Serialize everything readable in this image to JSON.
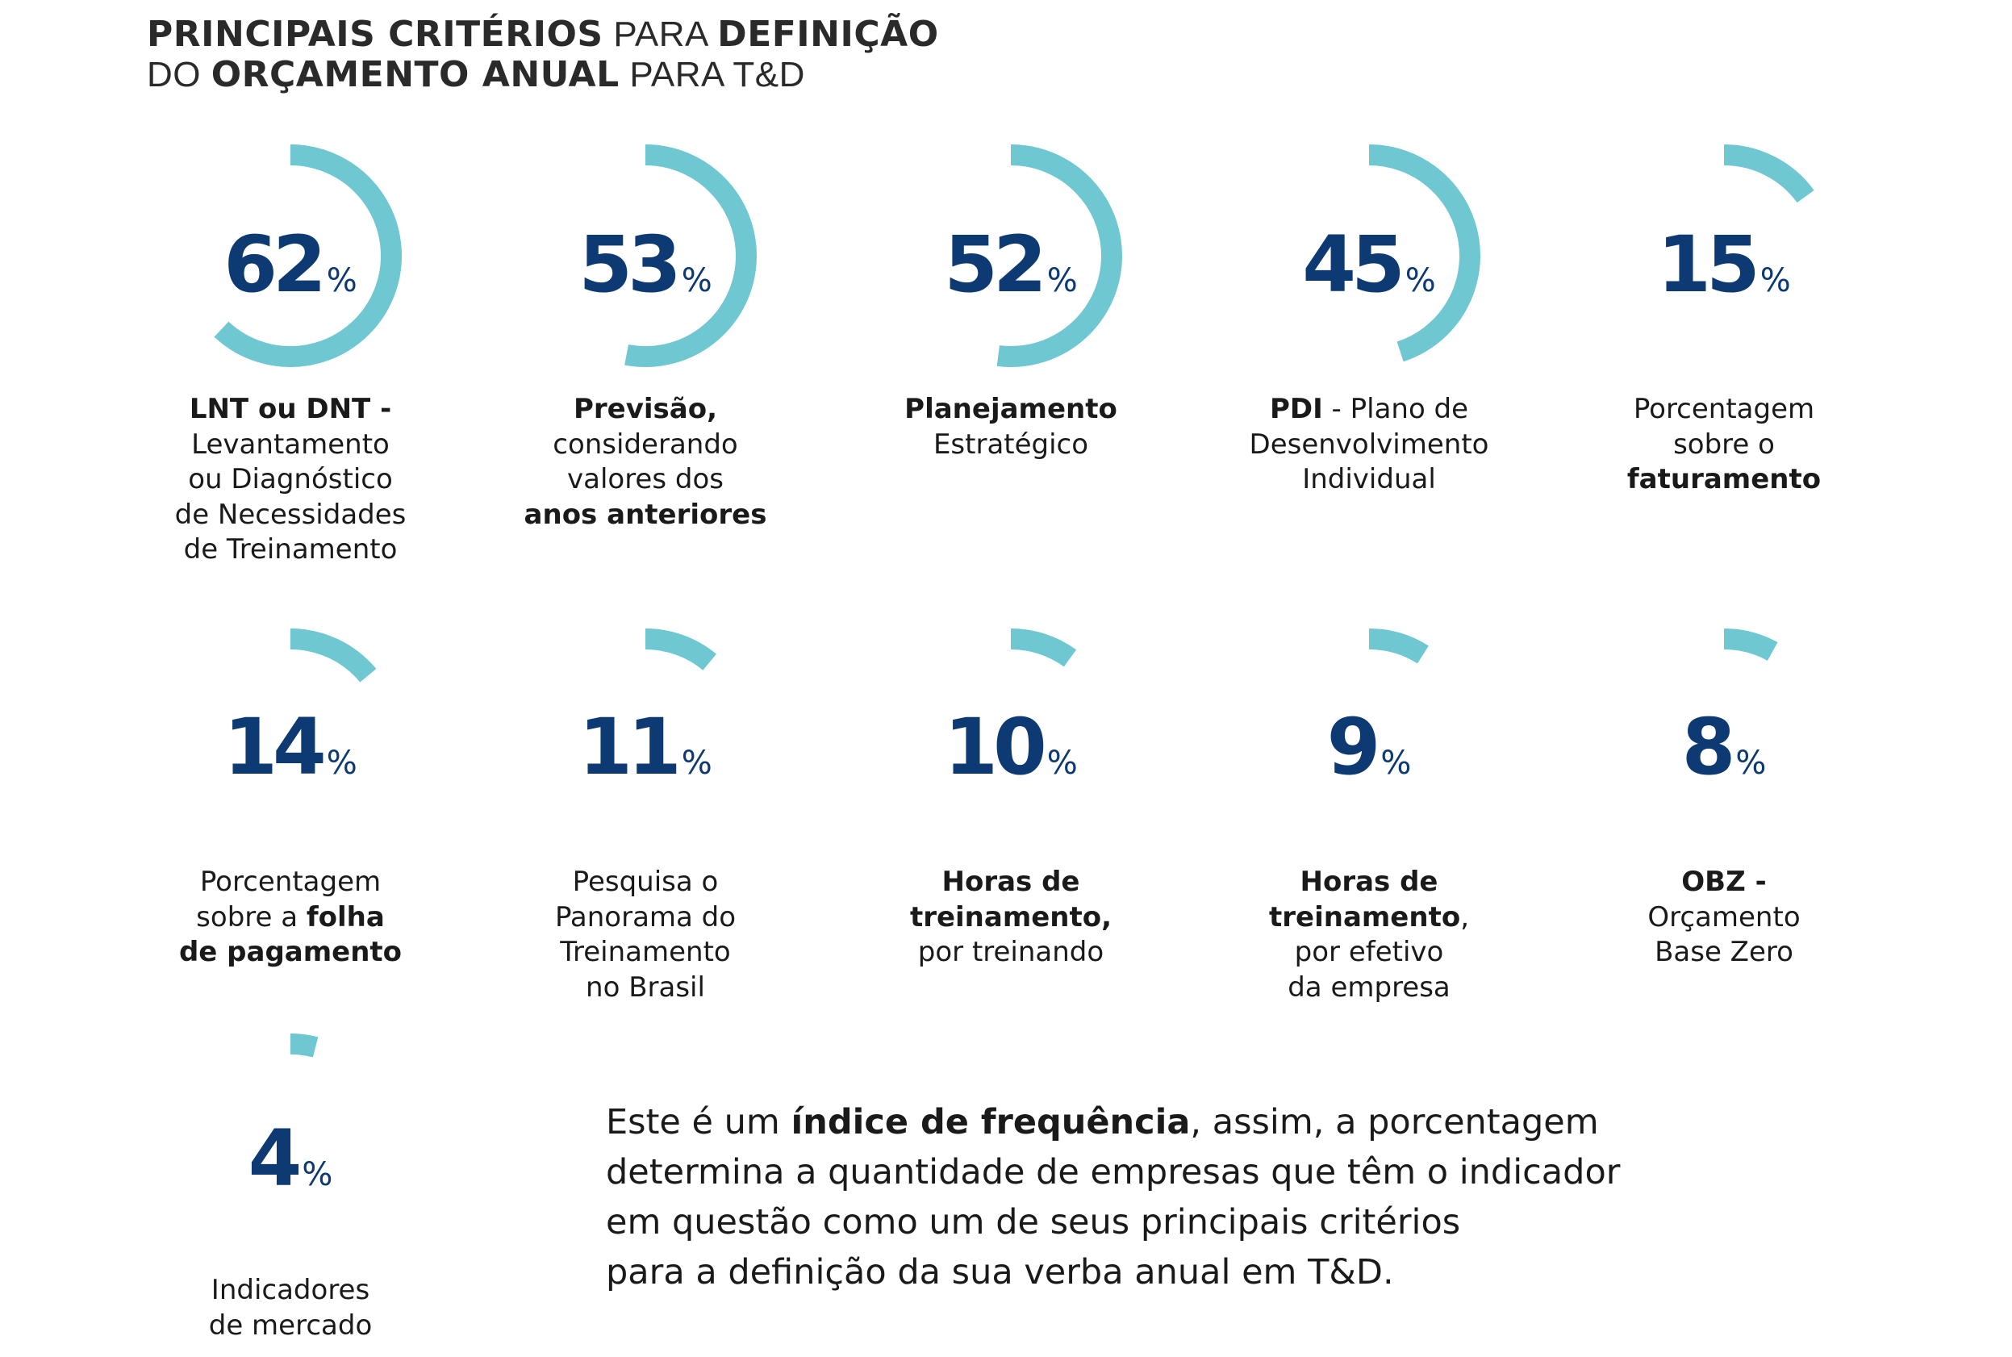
{
  "title": {
    "lines": [
      [
        {
          "t": "PRINCIPAIS CRITÉRIOS",
          "b": true
        },
        {
          "t": " PARA ",
          "b": false
        },
        {
          "t": "DEFINIÇÃO",
          "b": true
        }
      ],
      [
        {
          "t": "DO ",
          "b": false
        },
        {
          "t": "ORÇAMENTO ANUAL",
          "b": true
        },
        {
          "t": " PARA T&D",
          "b": false
        }
      ]
    ]
  },
  "colors": {
    "arc": "#6fc7d1",
    "number": "#0d3a72",
    "text": "#1a1a1a"
  },
  "chart_data": {
    "type": "radial-gauge",
    "unit": "%",
    "range": [
      0,
      100
    ],
    "categories": [
      "LNT ou DNT - Levantamento ou Diagnóstico de Necessidades de Treinamento",
      "Previsão, considerando valores dos anos anteriores",
      "Planejamento Estratégico",
      "PDI - Plano de Desenvolvimento Individual",
      "Porcentagem sobre o faturamento",
      "Porcentagem sobre a folha de pagamento",
      "Pesquisa o Panorama do Treinamento no Brasil",
      "Horas de treinamento, por treinando",
      "Horas de treinamento, por efetivo da empresa",
      "OBZ - Orçamento Base Zero",
      "Indicadores de mercado"
    ],
    "values": [
      62,
      53,
      52,
      45,
      15,
      14,
      11,
      10,
      9,
      8,
      4
    ]
  },
  "criteria": [
    {
      "value": "62",
      "pct": "%",
      "label": [
        [
          {
            "t": "LNT ou DNT -",
            "b": true
          }
        ],
        [
          {
            "t": "Levantamento"
          }
        ],
        [
          {
            "t": "ou Diagnóstico"
          }
        ],
        [
          {
            "t": "de Necessidades"
          }
        ],
        [
          {
            "t": "de Treinamento"
          }
        ]
      ]
    },
    {
      "value": "53",
      "pct": "%",
      "label": [
        [
          {
            "t": "Previsão,",
            "b": true
          }
        ],
        [
          {
            "t": "considerando"
          }
        ],
        [
          {
            "t": "valores dos"
          }
        ],
        [
          {
            "t": "anos anteriores",
            "b": true
          }
        ]
      ]
    },
    {
      "value": "52",
      "pct": "%",
      "label": [
        [
          {
            "t": "Planejamento",
            "b": true
          }
        ],
        [
          {
            "t": "Estratégico"
          }
        ]
      ]
    },
    {
      "value": "45",
      "pct": "%",
      "label": [
        [
          {
            "t": "PDI",
            "b": true
          },
          {
            "t": " - Plano de"
          }
        ],
        [
          {
            "t": "Desenvolvimento"
          }
        ],
        [
          {
            "t": "Individual"
          }
        ]
      ]
    },
    {
      "value": "15",
      "pct": "%",
      "label": [
        [
          {
            "t": "Porcentagem"
          }
        ],
        [
          {
            "t": "sobre o"
          }
        ],
        [
          {
            "t": "faturamento",
            "b": true
          }
        ]
      ]
    },
    {
      "value": "14",
      "pct": "%",
      "label": [
        [
          {
            "t": "Porcentagem"
          }
        ],
        [
          {
            "t": "sobre a "
          },
          {
            "t": "folha",
            "b": true
          }
        ],
        [
          {
            "t": "de pagamento",
            "b": true
          }
        ]
      ]
    },
    {
      "value": "11",
      "pct": "%",
      "label": [
        [
          {
            "t": "Pesquisa o"
          }
        ],
        [
          {
            "t": "Panorama do"
          }
        ],
        [
          {
            "t": "Treinamento"
          }
        ],
        [
          {
            "t": "no Brasil"
          }
        ]
      ]
    },
    {
      "value": "10",
      "pct": "%",
      "label": [
        [
          {
            "t": "Horas de",
            "b": true
          }
        ],
        [
          {
            "t": "treinamento,",
            "b": true
          }
        ],
        [
          {
            "t": "por treinando"
          }
        ]
      ]
    },
    {
      "value": "9",
      "pct": "%",
      "label": [
        [
          {
            "t": "Horas de",
            "b": true
          }
        ],
        [
          {
            "t": "treinamento",
            "b": true
          },
          {
            "t": ","
          }
        ],
        [
          {
            "t": "por efetivo"
          }
        ],
        [
          {
            "t": "da empresa"
          }
        ]
      ]
    },
    {
      "value": "8",
      "pct": "%",
      "label": [
        [
          {
            "t": "OBZ -",
            "b": true
          }
        ],
        [
          {
            "t": "Orçamento"
          }
        ],
        [
          {
            "t": "Base Zero"
          }
        ]
      ]
    },
    {
      "value": "4",
      "pct": "%",
      "label": [
        [
          {
            "t": "Indicadores"
          }
        ],
        [
          {
            "t": "de mercado"
          }
        ]
      ]
    }
  ],
  "note": {
    "lines": [
      [
        {
          "t": "Este é um "
        },
        {
          "t": "índice de frequência",
          "b": true
        },
        {
          "t": ", assim, a porcentagem"
        }
      ],
      [
        {
          "t": "determina a quantidade de empresas que têm o indicador"
        }
      ],
      [
        {
          "t": "em questão como um de seus principais critérios"
        }
      ],
      [
        {
          "t": "para a definição da sua verba anual em T&D."
        }
      ]
    ]
  }
}
